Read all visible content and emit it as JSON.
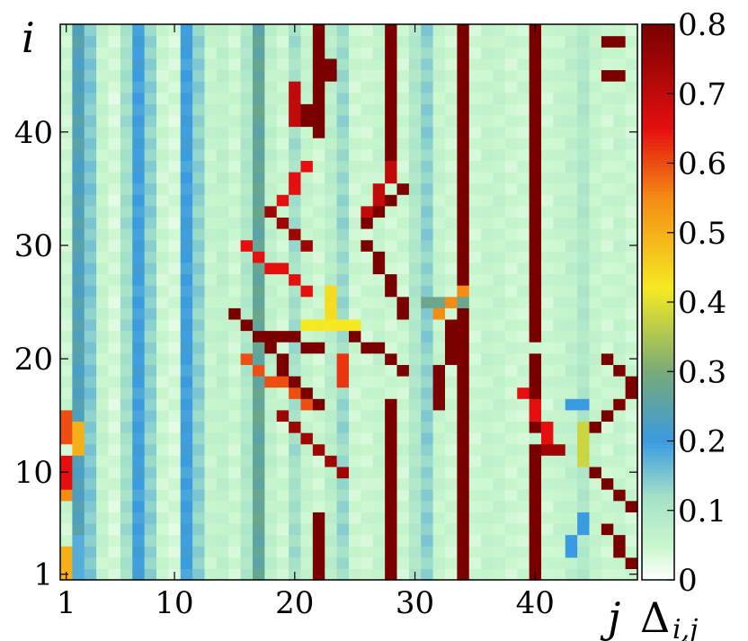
{
  "chart_data": {
    "type": "heatmap",
    "title": "",
    "xlabel": "j",
    "ylabel": "i",
    "x_range": [
      1,
      48
    ],
    "y_range": [
      1,
      49
    ],
    "x_ticks": [
      "1",
      "10",
      "20",
      "30",
      "40"
    ],
    "y_ticks": [
      "1",
      "10",
      "20",
      "30",
      "40"
    ],
    "colorbar": {
      "label": "Δ",
      "label_subscript": "i,j",
      "range": [
        0,
        0.8
      ],
      "ticks": [
        "0",
        "0.1",
        "0.2",
        "0.3",
        "0.4",
        "0.5",
        "0.6",
        "0.7",
        "0.8"
      ],
      "colors": [
        "#ffffff",
        "#c8f7cd",
        "#3a9be0",
        "#f5ea22",
        "#e50f0f",
        "#7a0000"
      ]
    },
    "column_background": [
      {
        "j": 1,
        "value": 0.05
      },
      {
        "j": 2,
        "value": 0.24
      },
      {
        "j": 3,
        "value": 0.15
      },
      {
        "j": 4,
        "value": 0.06
      },
      {
        "j": 5,
        "value": 0.04
      },
      {
        "j": 6,
        "value": 0.12
      },
      {
        "j": 7,
        "value": 0.2
      },
      {
        "j": 8,
        "value": 0.14
      },
      {
        "j": 9,
        "value": 0.05
      },
      {
        "j": 10,
        "value": 0.04
      },
      {
        "j": 11,
        "value": 0.2
      },
      {
        "j": 12,
        "value": 0.14
      },
      {
        "j": 13,
        "value": 0.06
      },
      {
        "j": 14,
        "value": 0.07
      },
      {
        "j": 15,
        "value": 0.05
      },
      {
        "j": 16,
        "value": 0.1
      },
      {
        "j": 17,
        "value": 0.27
      },
      {
        "j": 18,
        "value": 0.07
      },
      {
        "j": 19,
        "value": 0.05
      },
      {
        "j": 20,
        "value": 0.12
      },
      {
        "j": 21,
        "value": 0.06
      },
      {
        "j": 22,
        "value": 0.05
      },
      {
        "j": 23,
        "value": 0.08
      },
      {
        "j": 24,
        "value": 0.13
      },
      {
        "j": 25,
        "value": 0.05
      },
      {
        "j": 26,
        "value": 0.05
      },
      {
        "j": 27,
        "value": 0.06
      },
      {
        "j": 28,
        "value": 0.05
      },
      {
        "j": 29,
        "value": 0.05
      },
      {
        "j": 30,
        "value": 0.1
      },
      {
        "j": 31,
        "value": 0.14
      },
      {
        "j": 32,
        "value": 0.06
      },
      {
        "j": 33,
        "value": 0.05
      },
      {
        "j": 34,
        "value": 0.05
      },
      {
        "j": 35,
        "value": 0.05
      },
      {
        "j": 36,
        "value": 0.06
      },
      {
        "j": 37,
        "value": 0.06
      },
      {
        "j": 38,
        "value": 0.05
      },
      {
        "j": 39,
        "value": 0.05
      },
      {
        "j": 40,
        "value": 0.05
      },
      {
        "j": 41,
        "value": 0.05
      },
      {
        "j": 42,
        "value": 0.06
      },
      {
        "j": 43,
        "value": 0.07
      },
      {
        "j": 44,
        "value": 0.1
      },
      {
        "j": 45,
        "value": 0.06
      },
      {
        "j": 46,
        "value": 0.05
      },
      {
        "j": 47,
        "value": 0.06
      },
      {
        "j": 48,
        "value": 0.05
      }
    ],
    "column_runs": [
      {
        "j": 1,
        "i_from": 1,
        "i_to": 3,
        "value": 0.5
      },
      {
        "j": 1,
        "i_from": 8,
        "i_to": 8,
        "value": 0.55
      },
      {
        "j": 1,
        "i_from": 9,
        "i_to": 11,
        "value": 0.65
      },
      {
        "j": 1,
        "i_from": 13,
        "i_to": 15,
        "value": 0.6
      },
      {
        "j": 2,
        "i_from": 1,
        "i_to": 4,
        "value": 0.18
      },
      {
        "j": 2,
        "i_from": 12,
        "i_to": 14,
        "value": 0.5
      },
      {
        "j": 22,
        "i_from": 1,
        "i_to": 6,
        "value": 0.8
      },
      {
        "j": 22,
        "i_from": 40,
        "i_to": 49,
        "value": 0.8
      },
      {
        "j": 28,
        "i_from": 1,
        "i_to": 16,
        "value": 0.8
      },
      {
        "j": 28,
        "i_from": 38,
        "i_to": 49,
        "value": 0.8
      },
      {
        "j": 34,
        "i_from": 1,
        "i_to": 49,
        "value": 0.8
      },
      {
        "j": 40,
        "i_from": 1,
        "i_to": 12,
        "value": 0.8
      },
      {
        "j": 40,
        "i_from": 14,
        "i_to": 20,
        "value": 0.8
      },
      {
        "j": 40,
        "i_from": 22,
        "i_to": 49,
        "value": 0.8
      }
    ],
    "features": [
      {
        "j1": 15,
        "i1": 24,
        "j2": 22,
        "i2": 16,
        "value": 0.8
      },
      {
        "j1": 18,
        "i1": 33,
        "j2": 21,
        "i2": 37,
        "value": 0.65
      },
      {
        "j1": 18,
        "i1": 33,
        "j2": 21,
        "i2": 30,
        "value": 0.75
      },
      {
        "j1": 16,
        "i1": 30,
        "j2": 21,
        "i2": 26,
        "value": 0.65
      },
      {
        "j1": 16,
        "i1": 20,
        "j2": 21,
        "i2": 16,
        "value": 0.6
      },
      {
        "j1": 19,
        "i1": 15,
        "j2": 24,
        "i2": 10,
        "value": 0.75
      },
      {
        "j1": 18,
        "i1": 22,
        "j2": 22,
        "i2": 21,
        "value": 0.8
      },
      {
        "j1": 21,
        "i1": 23,
        "j2": 25,
        "i2": 23,
        "value": 0.42
      },
      {
        "j1": 23,
        "i1": 26,
        "j2": 23,
        "i2": 24,
        "value": 0.44
      },
      {
        "j1": 24,
        "i1": 20,
        "j2": 24,
        "i2": 18,
        "value": 0.62
      },
      {
        "j1": 21,
        "i1": 41,
        "j2": 23,
        "i2": 46,
        "value": 0.8
      },
      {
        "j1": 20,
        "i1": 41,
        "j2": 20,
        "i2": 44,
        "value": 0.7
      },
      {
        "j1": 26,
        "i1": 30,
        "j2": 29,
        "i2": 24,
        "value": 0.8
      },
      {
        "j1": 25,
        "i1": 22,
        "j2": 29,
        "i2": 19,
        "value": 0.8
      },
      {
        "j1": 29,
        "i1": 35,
        "j2": 26,
        "i2": 32,
        "value": 0.8
      },
      {
        "j1": 26,
        "i1": 33,
        "j2": 28,
        "i2": 37,
        "value": 0.7
      },
      {
        "j1": 33,
        "i1": 23,
        "j2": 32,
        "i2": 16,
        "value": 0.8
      },
      {
        "j1": 31,
        "i1": 25,
        "j2": 34,
        "i2": 25,
        "value": 0.28
      },
      {
        "j1": 32,
        "i1": 24,
        "j2": 34,
        "i2": 26,
        "value": 0.55
      },
      {
        "j1": 39,
        "i1": 17,
        "j2": 42,
        "i2": 12,
        "value": 0.65
      },
      {
        "j1": 41,
        "i1": 12,
        "j2": 42,
        "i2": 12,
        "value": 0.75
      },
      {
        "j1": 45,
        "i1": 14,
        "j2": 48,
        "i2": 17,
        "value": 0.8
      },
      {
        "j1": 45,
        "i1": 10,
        "j2": 48,
        "i2": 7,
        "value": 0.8
      },
      {
        "j1": 46,
        "i1": 5,
        "j2": 48,
        "i2": 2,
        "value": 0.8
      },
      {
        "j1": 46,
        "i1": 48,
        "j2": 47,
        "i2": 48,
        "value": 0.8
      },
      {
        "j1": 46,
        "i1": 45,
        "j2": 47,
        "i2": 45,
        "value": 0.8
      },
      {
        "j1": 44,
        "i1": 11,
        "j2": 44,
        "i2": 14,
        "value": 0.38
      },
      {
        "j1": 43,
        "i1": 16,
        "j2": 44,
        "i2": 16,
        "value": 0.2
      },
      {
        "j1": 43,
        "i1": 3,
        "j2": 44,
        "i2": 6,
        "value": 0.2
      },
      {
        "j1": 46,
        "i1": 20,
        "j2": 48,
        "i2": 18,
        "value": 0.8
      }
    ]
  }
}
